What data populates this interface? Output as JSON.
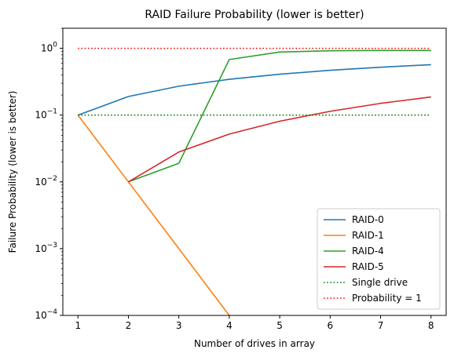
{
  "chart_data": {
    "type": "line",
    "title": "RAID Failure Probability (lower is better)",
    "xlabel": "Number of drives in array",
    "ylabel": "Failure Probability (lower is better)",
    "yscale": "log",
    "ylim": [
      0.0001,
      2
    ],
    "xlim": [
      0.7,
      8.3
    ],
    "xticks": [
      1,
      2,
      3,
      4,
      5,
      6,
      7,
      8
    ],
    "yticks": [
      {
        "value": 0.0001,
        "base": "10",
        "exp": "−4"
      },
      {
        "value": 0.001,
        "base": "10",
        "exp": "−3"
      },
      {
        "value": 0.01,
        "base": "10",
        "exp": "−2"
      },
      {
        "value": 0.1,
        "base": "10",
        "exp": "−1"
      },
      {
        "value": 1,
        "base": "10",
        "exp": "0"
      }
    ],
    "grid": false,
    "legend_position": "lower right",
    "series": [
      {
        "name": "RAID-0",
        "color": "#1f77b4",
        "style": "solid",
        "x": [
          1,
          2,
          3,
          4,
          5,
          6,
          7,
          8
        ],
        "y": [
          0.1,
          0.19,
          0.271,
          0.344,
          0.41,
          0.469,
          0.522,
          0.57
        ]
      },
      {
        "name": "RAID-1",
        "color": "#ff7f0e",
        "style": "solid",
        "x": [
          1,
          2,
          3,
          4
        ],
        "y": [
          0.1,
          0.01,
          0.001,
          0.0001
        ]
      },
      {
        "name": "RAID-4",
        "color": "#2ca02c",
        "style": "solid",
        "x": [
          2,
          3,
          4,
          5,
          6,
          7,
          8
        ],
        "y": [
          0.01,
          0.019,
          0.68,
          0.88,
          0.92,
          0.93,
          0.93
        ]
      },
      {
        "name": "RAID-5",
        "color": "#d62728",
        "style": "solid",
        "x": [
          2,
          3,
          4,
          5,
          6,
          7,
          8
        ],
        "y": [
          0.01,
          0.028,
          0.052,
          0.081,
          0.114,
          0.15,
          0.187
        ]
      },
      {
        "name": "Single drive",
        "color": "#008000",
        "style": "dotted",
        "x": [
          1,
          8
        ],
        "y": [
          0.1,
          0.1
        ]
      },
      {
        "name": "Probability = 1",
        "color": "#ff0000",
        "style": "dotted",
        "x": [
          1,
          8
        ],
        "y": [
          1,
          1
        ]
      }
    ]
  }
}
